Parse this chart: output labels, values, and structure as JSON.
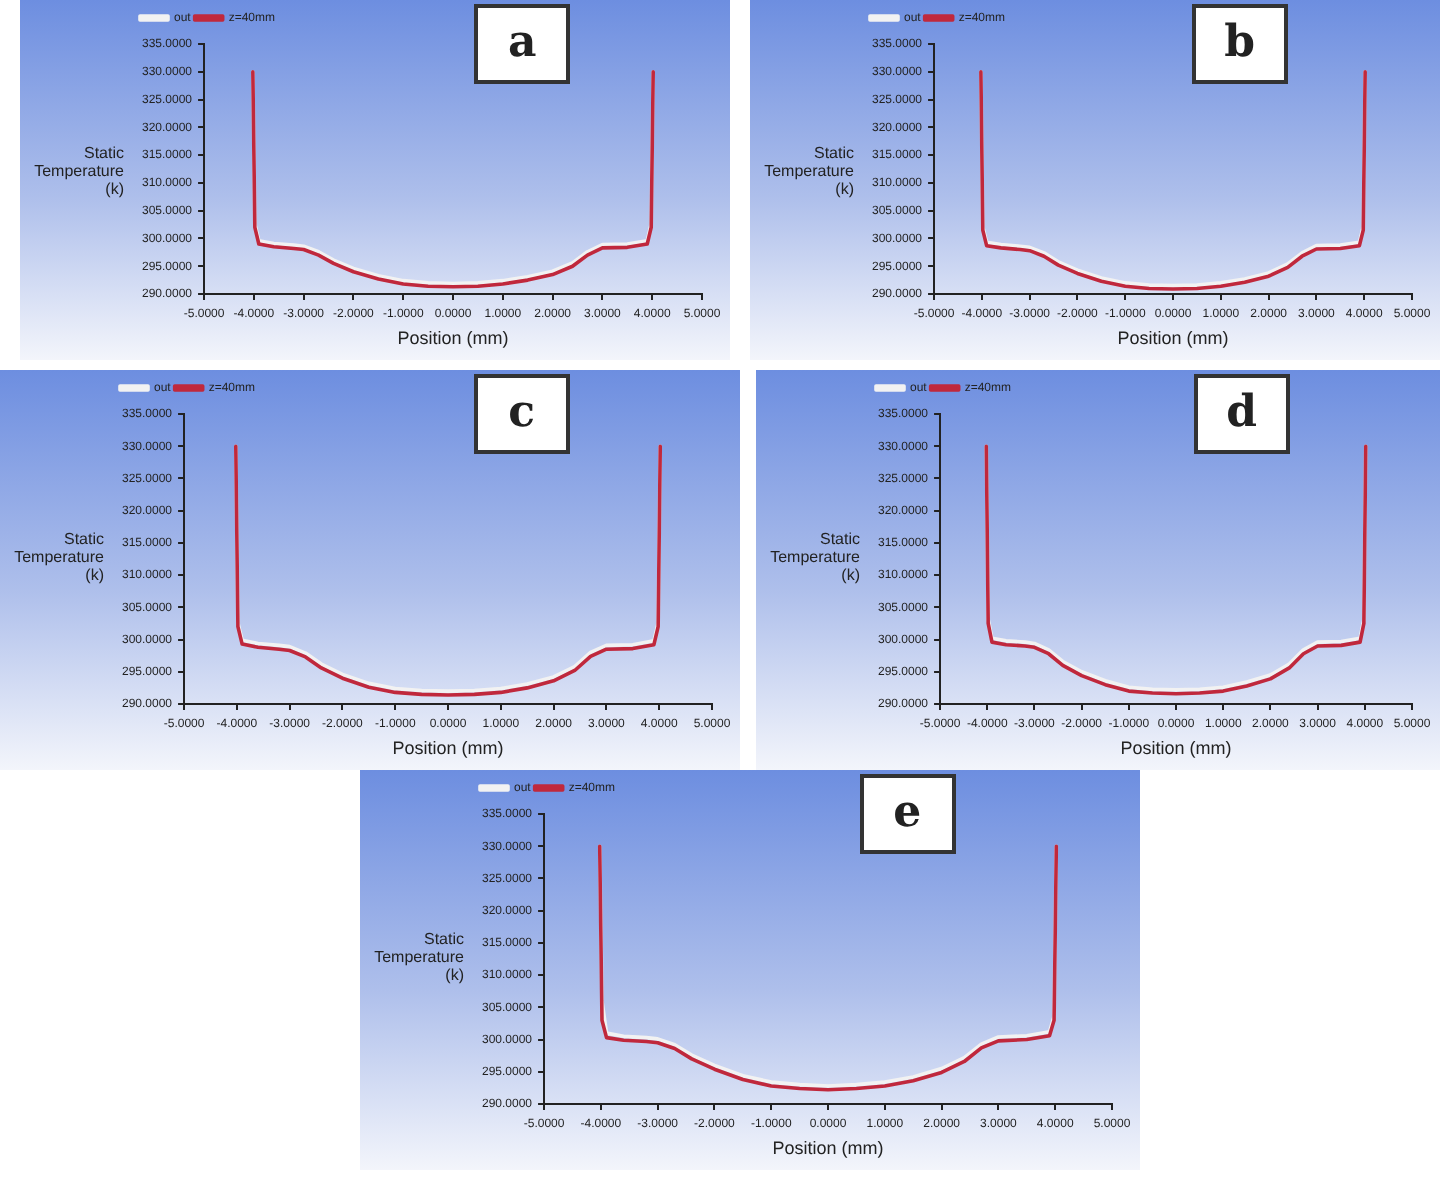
{
  "chart_data": [
    {
      "type": "line",
      "title": "a",
      "xlabel": "Position (mm)",
      "ylabel": "Static Temperature (k)",
      "legend": "top left",
      "marker": "none",
      "line_style": "solid",
      "x": [
        -4.02,
        -3.98,
        -3.9,
        -3.6,
        -3.2,
        -3,
        -2.7,
        -2.4,
        -2,
        -1.5,
        -1,
        -0.5,
        0,
        0.5,
        1,
        1.5,
        2,
        2.4,
        2.7,
        3,
        3.5,
        3.9,
        3.98,
        4.02
      ],
      "xlim": [
        -5,
        5
      ],
      "xticks": [
        {
          "value": -5,
          "label": "-5.0000"
        },
        {
          "value": -4,
          "label": "-4.0000"
        },
        {
          "value": -3,
          "label": "-3.0000"
        },
        {
          "value": -2,
          "label": "-2.0000"
        },
        {
          "value": -1,
          "label": "-1.0000"
        },
        {
          "value": 0,
          "label": "0.0000"
        },
        {
          "value": 1,
          "label": "1.0000"
        },
        {
          "value": 2,
          "label": "2.0000"
        },
        {
          "value": 3,
          "label": "3.0000"
        },
        {
          "value": 4,
          "label": "4.0000"
        },
        {
          "value": 5,
          "label": "5.0000"
        }
      ],
      "ylim": [
        290,
        335
      ],
      "yticks": [
        {
          "value": 290,
          "label": "290.0000"
        },
        {
          "value": 295,
          "label": "295.0000"
        },
        {
          "value": 300,
          "label": "300.0000"
        },
        {
          "value": 305,
          "label": "305.0000"
        },
        {
          "value": 310,
          "label": "310.0000"
        },
        {
          "value": 315,
          "label": "315.0000"
        },
        {
          "value": 320,
          "label": "320.0000"
        },
        {
          "value": 325,
          "label": "325.0000"
        },
        {
          "value": 330,
          "label": "330.0000"
        },
        {
          "value": 335,
          "label": "335.0000"
        }
      ],
      "series": [
        {
          "name": "out",
          "color": "#f2f2f2",
          "values": [
            330,
            302.6,
            299.6,
            299.1,
            298.8,
            298.6,
            297.6,
            296.1,
            294.6,
            293.3,
            292.4,
            292,
            291.9,
            292,
            292.4,
            293.1,
            294.1,
            295.6,
            297.6,
            298.9,
            299,
            299.6,
            302.6,
            330
          ]
        },
        {
          "name": "z=40mm",
          "color": "#c0283c",
          "values": [
            330,
            302,
            299,
            298.5,
            298.2,
            298,
            297,
            295.5,
            294,
            292.7,
            291.8,
            291.4,
            291.3,
            291.4,
            291.8,
            292.5,
            293.5,
            295,
            297,
            298.3,
            298.4,
            299,
            302,
            330
          ]
        }
      ]
    },
    {
      "type": "line",
      "title": "b",
      "xlabel": "Position (mm)",
      "ylabel": "Static Temperature (k)",
      "legend": "top left",
      "marker": "none",
      "line_style": "solid",
      "x": [
        -4.02,
        -3.98,
        -3.9,
        -3.6,
        -3.2,
        -3,
        -2.7,
        -2.4,
        -2,
        -1.5,
        -1,
        -0.5,
        0,
        0.5,
        1,
        1.5,
        2,
        2.4,
        2.7,
        3,
        3.5,
        3.9,
        3.98,
        4.02
      ],
      "xlim": [
        -5,
        5
      ],
      "xticks": [
        {
          "value": -5,
          "label": "-5.0000"
        },
        {
          "value": -4,
          "label": "-4.0000"
        },
        {
          "value": -3,
          "label": "-3.0000"
        },
        {
          "value": -2,
          "label": "-2.0000"
        },
        {
          "value": -1,
          "label": "-1.0000"
        },
        {
          "value": 0,
          "label": "0.0000"
        },
        {
          "value": 1,
          "label": "1.0000"
        },
        {
          "value": 2,
          "label": "2.0000"
        },
        {
          "value": 3,
          "label": "3.0000"
        },
        {
          "value": 4,
          "label": "4.0000"
        },
        {
          "value": 5,
          "label": "5.0000"
        }
      ],
      "ylim": [
        290,
        335
      ],
      "yticks": [
        {
          "value": 290,
          "label": "290.0000"
        },
        {
          "value": 295,
          "label": "295.0000"
        },
        {
          "value": 300,
          "label": "300.0000"
        },
        {
          "value": 305,
          "label": "305.0000"
        },
        {
          "value": 310,
          "label": "310.0000"
        },
        {
          "value": 315,
          "label": "315.0000"
        },
        {
          "value": 320,
          "label": "320.0000"
        },
        {
          "value": 325,
          "label": "325.0000"
        },
        {
          "value": 330,
          "label": "330.0000"
        },
        {
          "value": 335,
          "label": "335.0000"
        }
      ],
      "series": [
        {
          "name": "out",
          "color": "#f2f2f2",
          "values": [
            330,
            302.1,
            299.3,
            298.9,
            298.6,
            298.4,
            297.4,
            295.8,
            294.3,
            292.9,
            292,
            291.6,
            291.5,
            291.6,
            292,
            292.7,
            293.8,
            295.4,
            297.4,
            298.7,
            298.8,
            299.3,
            302.1,
            330
          ]
        },
        {
          "name": "z=40mm",
          "color": "#c0283c",
          "values": [
            330,
            301.5,
            298.7,
            298.3,
            298,
            297.8,
            296.8,
            295.2,
            293.7,
            292.3,
            291.4,
            291,
            290.9,
            291,
            291.4,
            292.1,
            293.2,
            294.8,
            296.8,
            298.1,
            298.2,
            298.7,
            301.5,
            330
          ]
        }
      ]
    },
    {
      "type": "line",
      "title": "c",
      "xlabel": "Position (mm)",
      "ylabel": "Static Temperature (k)",
      "legend": "top left",
      "marker": "none",
      "line_style": "solid",
      "x": [
        -4.02,
        -3.98,
        -3.9,
        -3.6,
        -3.2,
        -3,
        -2.7,
        -2.4,
        -2,
        -1.5,
        -1,
        -0.5,
        0,
        0.5,
        1,
        1.5,
        2,
        2.4,
        2.7,
        3,
        3.5,
        3.9,
        3.98,
        4.02
      ],
      "xlim": [
        -5,
        5
      ],
      "xticks": [
        {
          "value": -5,
          "label": "-5.0000"
        },
        {
          "value": -4,
          "label": "-4.0000"
        },
        {
          "value": -3,
          "label": "-3.0000"
        },
        {
          "value": -2,
          "label": "-2.0000"
        },
        {
          "value": -1,
          "label": "-1.0000"
        },
        {
          "value": 0,
          "label": "0.0000"
        },
        {
          "value": 1,
          "label": "1.0000"
        },
        {
          "value": 2,
          "label": "2.0000"
        },
        {
          "value": 3,
          "label": "3.0000"
        },
        {
          "value": 4,
          "label": "4.0000"
        },
        {
          "value": 5,
          "label": "5.0000"
        }
      ],
      "ylim": [
        290,
        335
      ],
      "yticks": [
        {
          "value": 290,
          "label": "290.0000"
        },
        {
          "value": 295,
          "label": "295.0000"
        },
        {
          "value": 300,
          "label": "300.0000"
        },
        {
          "value": 305,
          "label": "305.0000"
        },
        {
          "value": 310,
          "label": "310.0000"
        },
        {
          "value": 315,
          "label": "315.0000"
        },
        {
          "value": 320,
          "label": "320.0000"
        },
        {
          "value": 325,
          "label": "325.0000"
        },
        {
          "value": 330,
          "label": "330.0000"
        },
        {
          "value": 335,
          "label": "335.0000"
        }
      ],
      "series": [
        {
          "name": "out",
          "color": "#f2f2f2",
          "values": [
            330,
            302.6,
            299.9,
            299.4,
            299.1,
            298.9,
            297.9,
            296.2,
            294.6,
            293.2,
            292.4,
            292.1,
            292,
            292.1,
            292.4,
            293.1,
            294.2,
            295.8,
            298,
            299.1,
            299.2,
            299.8,
            302.6,
            330
          ]
        },
        {
          "name": "z=40mm",
          "color": "#c0283c",
          "values": [
            330,
            302,
            299.3,
            298.8,
            298.5,
            298.3,
            297.3,
            295.6,
            294,
            292.6,
            291.8,
            291.5,
            291.4,
            291.5,
            291.8,
            292.5,
            293.6,
            295.2,
            297.4,
            298.5,
            298.6,
            299.2,
            302,
            330
          ]
        }
      ]
    },
    {
      "type": "line",
      "title": "d",
      "xlabel": "Position (mm)",
      "ylabel": "Static Temperature (k)",
      "legend": "top left",
      "marker": "none",
      "line_style": "solid",
      "x": [
        -4.02,
        -3.98,
        -3.9,
        -3.6,
        -3.2,
        -3,
        -2.7,
        -2.4,
        -2,
        -1.5,
        -1,
        -0.5,
        0,
        0.5,
        1,
        1.5,
        2,
        2.4,
        2.7,
        3,
        3.5,
        3.9,
        3.98,
        4.02
      ],
      "xlim": [
        -5,
        5
      ],
      "xticks": [
        {
          "value": -5,
          "label": "-5.0000"
        },
        {
          "value": -4,
          "label": "-4.0000"
        },
        {
          "value": -3,
          "label": "-3.0000"
        },
        {
          "value": -2,
          "label": "-2.0000"
        },
        {
          "value": -1,
          "label": "-1.0000"
        },
        {
          "value": 0,
          "label": "0.0000"
        },
        {
          "value": 1,
          "label": "1.0000"
        },
        {
          "value": 2,
          "label": "2.0000"
        },
        {
          "value": 3,
          "label": "3.0000"
        },
        {
          "value": 4,
          "label": "4.0000"
        },
        {
          "value": 5,
          "label": "5.0000"
        }
      ],
      "ylim": [
        290,
        335
      ],
      "yticks": [
        {
          "value": 290,
          "label": "290.0000"
        },
        {
          "value": 295,
          "label": "295.0000"
        },
        {
          "value": 300,
          "label": "300.0000"
        },
        {
          "value": 305,
          "label": "305.0000"
        },
        {
          "value": 310,
          "label": "310.0000"
        },
        {
          "value": 315,
          "label": "315.0000"
        },
        {
          "value": 320,
          "label": "320.0000"
        },
        {
          "value": 325,
          "label": "325.0000"
        },
        {
          "value": 330,
          "label": "330.0000"
        },
        {
          "value": 335,
          "label": "335.0000"
        }
      ],
      "series": [
        {
          "name": "out",
          "color": "#f2f2f2",
          "values": [
            330,
            303.1,
            300.2,
            299.8,
            299.6,
            299.4,
            298.4,
            296.6,
            295,
            293.6,
            292.6,
            292.3,
            292.2,
            292.3,
            292.6,
            293.4,
            294.5,
            296.2,
            298.4,
            299.6,
            299.7,
            300.2,
            303.1,
            330
          ]
        },
        {
          "name": "z=40mm",
          "color": "#c0283c",
          "values": [
            330,
            302.5,
            299.6,
            299.2,
            299,
            298.8,
            297.8,
            296,
            294.4,
            293,
            292,
            291.7,
            291.6,
            291.7,
            292,
            292.8,
            293.9,
            295.6,
            297.8,
            299,
            299.1,
            299.6,
            302.5,
            330
          ]
        }
      ]
    },
    {
      "type": "line",
      "title": "e",
      "xlabel": "Position (mm)",
      "ylabel": "Static Temperature (k)",
      "legend": "top left",
      "marker": "none",
      "line_style": "solid",
      "x": [
        -4.02,
        -3.98,
        -3.9,
        -3.6,
        -3.2,
        -3,
        -2.7,
        -2.4,
        -2,
        -1.5,
        -1,
        -0.5,
        0,
        0.5,
        1,
        1.5,
        2,
        2.4,
        2.7,
        3,
        3.5,
        3.9,
        3.98,
        4.02
      ],
      "xlim": [
        -5,
        5
      ],
      "xticks": [
        {
          "value": -5,
          "label": "-5.0000"
        },
        {
          "value": -4,
          "label": "-4.0000"
        },
        {
          "value": -3,
          "label": "-3.0000"
        },
        {
          "value": -2,
          "label": "-2.0000"
        },
        {
          "value": -1,
          "label": "-1.0000"
        },
        {
          "value": 0,
          "label": "0.0000"
        },
        {
          "value": 1,
          "label": "1.0000"
        },
        {
          "value": 2,
          "label": "2.0000"
        },
        {
          "value": 3,
          "label": "3.0000"
        },
        {
          "value": 4,
          "label": "4.0000"
        },
        {
          "value": 5,
          "label": "5.0000"
        }
      ],
      "ylim": [
        290,
        335
      ],
      "yticks": [
        {
          "value": 290,
          "label": "290.0000"
        },
        {
          "value": 295,
          "label": "295.0000"
        },
        {
          "value": 300,
          "label": "300.0000"
        },
        {
          "value": 305,
          "label": "305.0000"
        },
        {
          "value": 310,
          "label": "310.0000"
        },
        {
          "value": 315,
          "label": "315.0000"
        },
        {
          "value": 320,
          "label": "320.0000"
        },
        {
          "value": 325,
          "label": "325.0000"
        },
        {
          "value": 330,
          "label": "330.0000"
        },
        {
          "value": 335,
          "label": "335.0000"
        }
      ],
      "series": [
        {
          "name": "out",
          "color": "#f2f2f2",
          "values": [
            330,
            306,
            301,
            300.5,
            300.3,
            300.1,
            299.2,
            297.6,
            296,
            294.4,
            293.4,
            293,
            292.8,
            293,
            293.4,
            294.2,
            295.5,
            297.2,
            299.3,
            300.4,
            300.6,
            301.2,
            303.6,
            330
          ]
        },
        {
          "name": "z=40mm",
          "color": "#c0283c",
          "values": [
            330,
            303,
            300.3,
            299.9,
            299.7,
            299.5,
            298.6,
            297,
            295.4,
            293.8,
            292.8,
            292.4,
            292.2,
            292.4,
            292.8,
            293.6,
            294.9,
            296.6,
            298.7,
            299.8,
            300,
            300.6,
            303,
            330
          ]
        }
      ]
    }
  ]
}
